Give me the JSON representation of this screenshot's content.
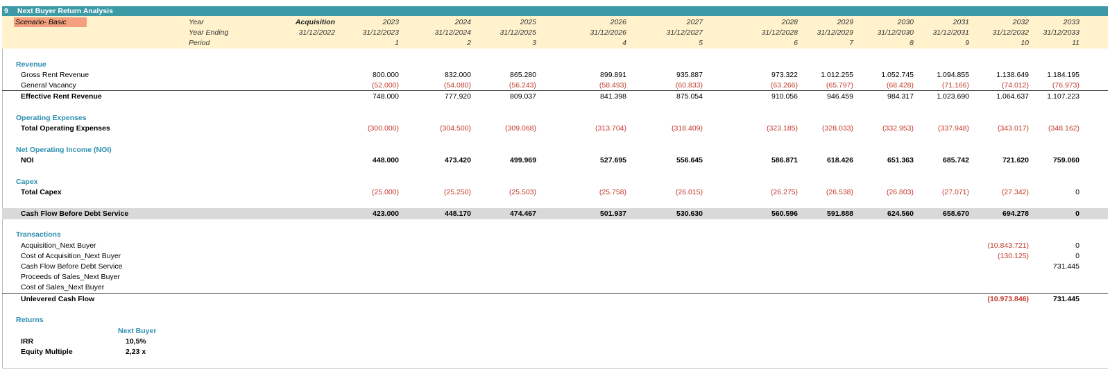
{
  "title": {
    "number": "9",
    "text": "Next Buyer Return Analysis"
  },
  "scenario": "Scenario- Basic",
  "header": {
    "year_label": "Year",
    "year_ending_label": "Year Ending",
    "period_label": "Period",
    "columns": [
      {
        "year": "Acquisition",
        "ending": "31/12/2022",
        "period": ""
      },
      {
        "year": "2023",
        "ending": "31/12/2023",
        "period": "1"
      },
      {
        "year": "2024",
        "ending": "31/12/2024",
        "period": "2"
      },
      {
        "year": "2025",
        "ending": "31/12/2025",
        "period": "3"
      },
      {
        "year": "2026",
        "ending": "31/12/2026",
        "period": "4"
      },
      {
        "year": "2027",
        "ending": "31/12/2027",
        "period": "5"
      },
      {
        "year": "2028",
        "ending": "31/12/2028",
        "period": "6"
      },
      {
        "year": "2029",
        "ending": "31/12/2029",
        "period": "7"
      },
      {
        "year": "2030",
        "ending": "31/12/2030",
        "period": "8"
      },
      {
        "year": "2031",
        "ending": "31/12/2031",
        "period": "9"
      },
      {
        "year": "2032",
        "ending": "31/12/2032",
        "period": "10"
      },
      {
        "year": "2033",
        "ending": "31/12/2033",
        "period": "11"
      }
    ]
  },
  "sections": {
    "revenue": "Revenue",
    "opex": "Operating Expenses",
    "noi": "Net Operating Income (NOI)",
    "capex": "Capex",
    "transactions": "Transactions",
    "returns": "Returns"
  },
  "rows": {
    "gross_rent": {
      "label": "Gross Rent Revenue",
      "values": [
        "800.000",
        "832.000",
        "865.280",
        "899.891",
        "935.887",
        "973.322",
        "1.012.255",
        "1.052.745",
        "1.094.855",
        "1.138.649",
        "1.184.195"
      ]
    },
    "vacancy": {
      "label": "General Vacancy",
      "values": [
        "(52.000)",
        "(54.080)",
        "(56.243)",
        "(58.493)",
        "(60.833)",
        "(63.266)",
        "(65.797)",
        "(68.428)",
        "(71.166)",
        "(74.012)",
        "(76.973)"
      ]
    },
    "effective_rent": {
      "label": "Effective Rent Revenue",
      "values": [
        "748.000",
        "777.920",
        "809.037",
        "841.398",
        "875.054",
        "910.056",
        "946.459",
        "984.317",
        "1.023.690",
        "1.064.637",
        "1.107.223"
      ]
    },
    "total_opex": {
      "label": "Total Operating Expenses",
      "values": [
        "(300.000)",
        "(304.500)",
        "(309.068)",
        "(313.704)",
        "(318.409)",
        "(323.185)",
        "(328.033)",
        "(332.953)",
        "(337.948)",
        "(343.017)",
        "(348.162)"
      ]
    },
    "noi": {
      "label": "NOI",
      "values": [
        "448.000",
        "473.420",
        "499.969",
        "527.695",
        "556.645",
        "586.871",
        "618.426",
        "651.363",
        "685.742",
        "721.620",
        "759.060"
      ]
    },
    "total_capex": {
      "label": "Total Capex",
      "values": [
        "(25.000)",
        "(25.250)",
        "(25.503)",
        "(25.758)",
        "(26.015)",
        "(26.275)",
        "(26.538)",
        "(26.803)",
        "(27.071)",
        "(27.342)",
        "0"
      ]
    },
    "cfbds": {
      "label": "Cash Flow Before Debt Service",
      "values": [
        "423.000",
        "448.170",
        "474.467",
        "501.937",
        "530.630",
        "560.596",
        "591.888",
        "624.560",
        "658.670",
        "694.278",
        "0"
      ]
    },
    "acq_next": {
      "label": "Acquisition_Next Buyer",
      "v2032": "(10.843.721)",
      "v2033": "0"
    },
    "cost_acq_next": {
      "label": "Cost of Acquisition_Next Buyer",
      "v2032": "(130.125)",
      "v2033": "0"
    },
    "cfbds_tx": {
      "label": "Cash Flow Before Debt Service",
      "v2032": "",
      "v2033": "731.445"
    },
    "proceeds_sales": {
      "label": "Proceeds of Sales_Next Buyer"
    },
    "cost_sales": {
      "label": "Cost of Sales_Next Buyer"
    },
    "unlevered": {
      "label": "Unlevered Cash Flow",
      "v2032": "(10.973.846)",
      "v2033": "731.445"
    }
  },
  "returns": {
    "column_header": "Next Buyer",
    "irr_label": "IRR",
    "irr_value": "10,5%",
    "em_label": "Equity Multiple",
    "em_value": "2,23 x"
  },
  "colors": {
    "title_bar": "#3c9aa6",
    "header_band": "#fff2cc",
    "scenario_bg": "#f4a07f",
    "section_text": "#2e8fb0",
    "negative": "#c0392b",
    "grey_band": "#d9d9d9"
  }
}
